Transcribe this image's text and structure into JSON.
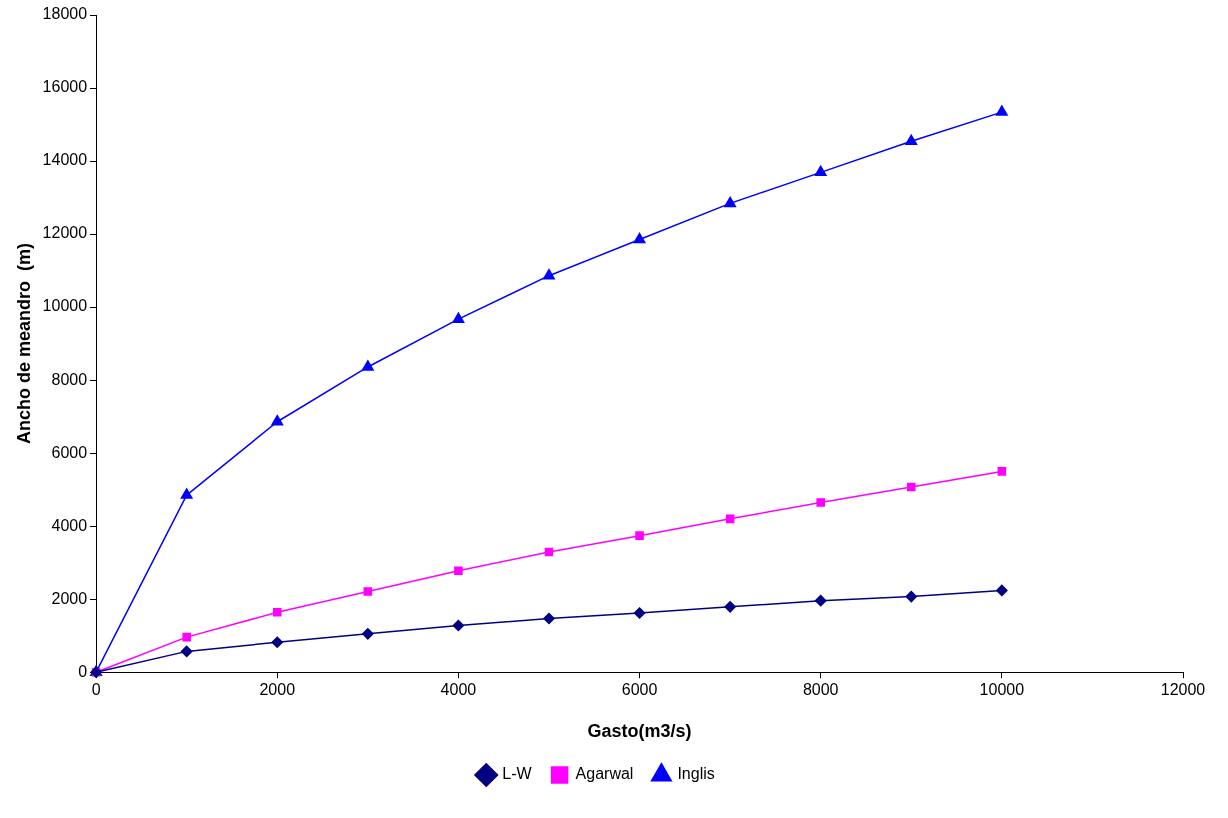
{
  "chart_data": {
    "type": "line",
    "xlabel": "Gasto(m3/s)",
    "ylabel": "Ancho de meandro  (m)",
    "x": [
      0,
      1000,
      2000,
      3000,
      4000,
      5000,
      6000,
      7000,
      8000,
      9000,
      10000
    ],
    "series": [
      {
        "name": "L-W",
        "color": "#000080",
        "marker": "diamond",
        "values": [
          0,
          570,
          820,
          1050,
          1280,
          1470,
          1620,
          1790,
          1960,
          2070,
          2240
        ]
      },
      {
        "name": "Agarwal",
        "color": "#ff00ff",
        "marker": "square",
        "values": [
          0,
          960,
          1640,
          2210,
          2780,
          3290,
          3740,
          4200,
          4650,
          5070,
          5500
        ]
      },
      {
        "name": "Inglis",
        "color": "#0000ff",
        "marker": "triangle",
        "values": [
          0,
          4850,
          6860,
          8360,
          9670,
          10860,
          11850,
          12840,
          13690,
          14540,
          15340
        ]
      }
    ],
    "xlim": [
      0,
      12000
    ],
    "xticks": [
      0,
      2000,
      4000,
      6000,
      8000,
      10000,
      12000
    ],
    "ylim": [
      0,
      18000
    ],
    "yticks": [
      0,
      2000,
      4000,
      6000,
      8000,
      10000,
      12000,
      14000,
      16000,
      18000
    ],
    "grid": false,
    "legend": "bottom",
    "line_style": "solid"
  }
}
